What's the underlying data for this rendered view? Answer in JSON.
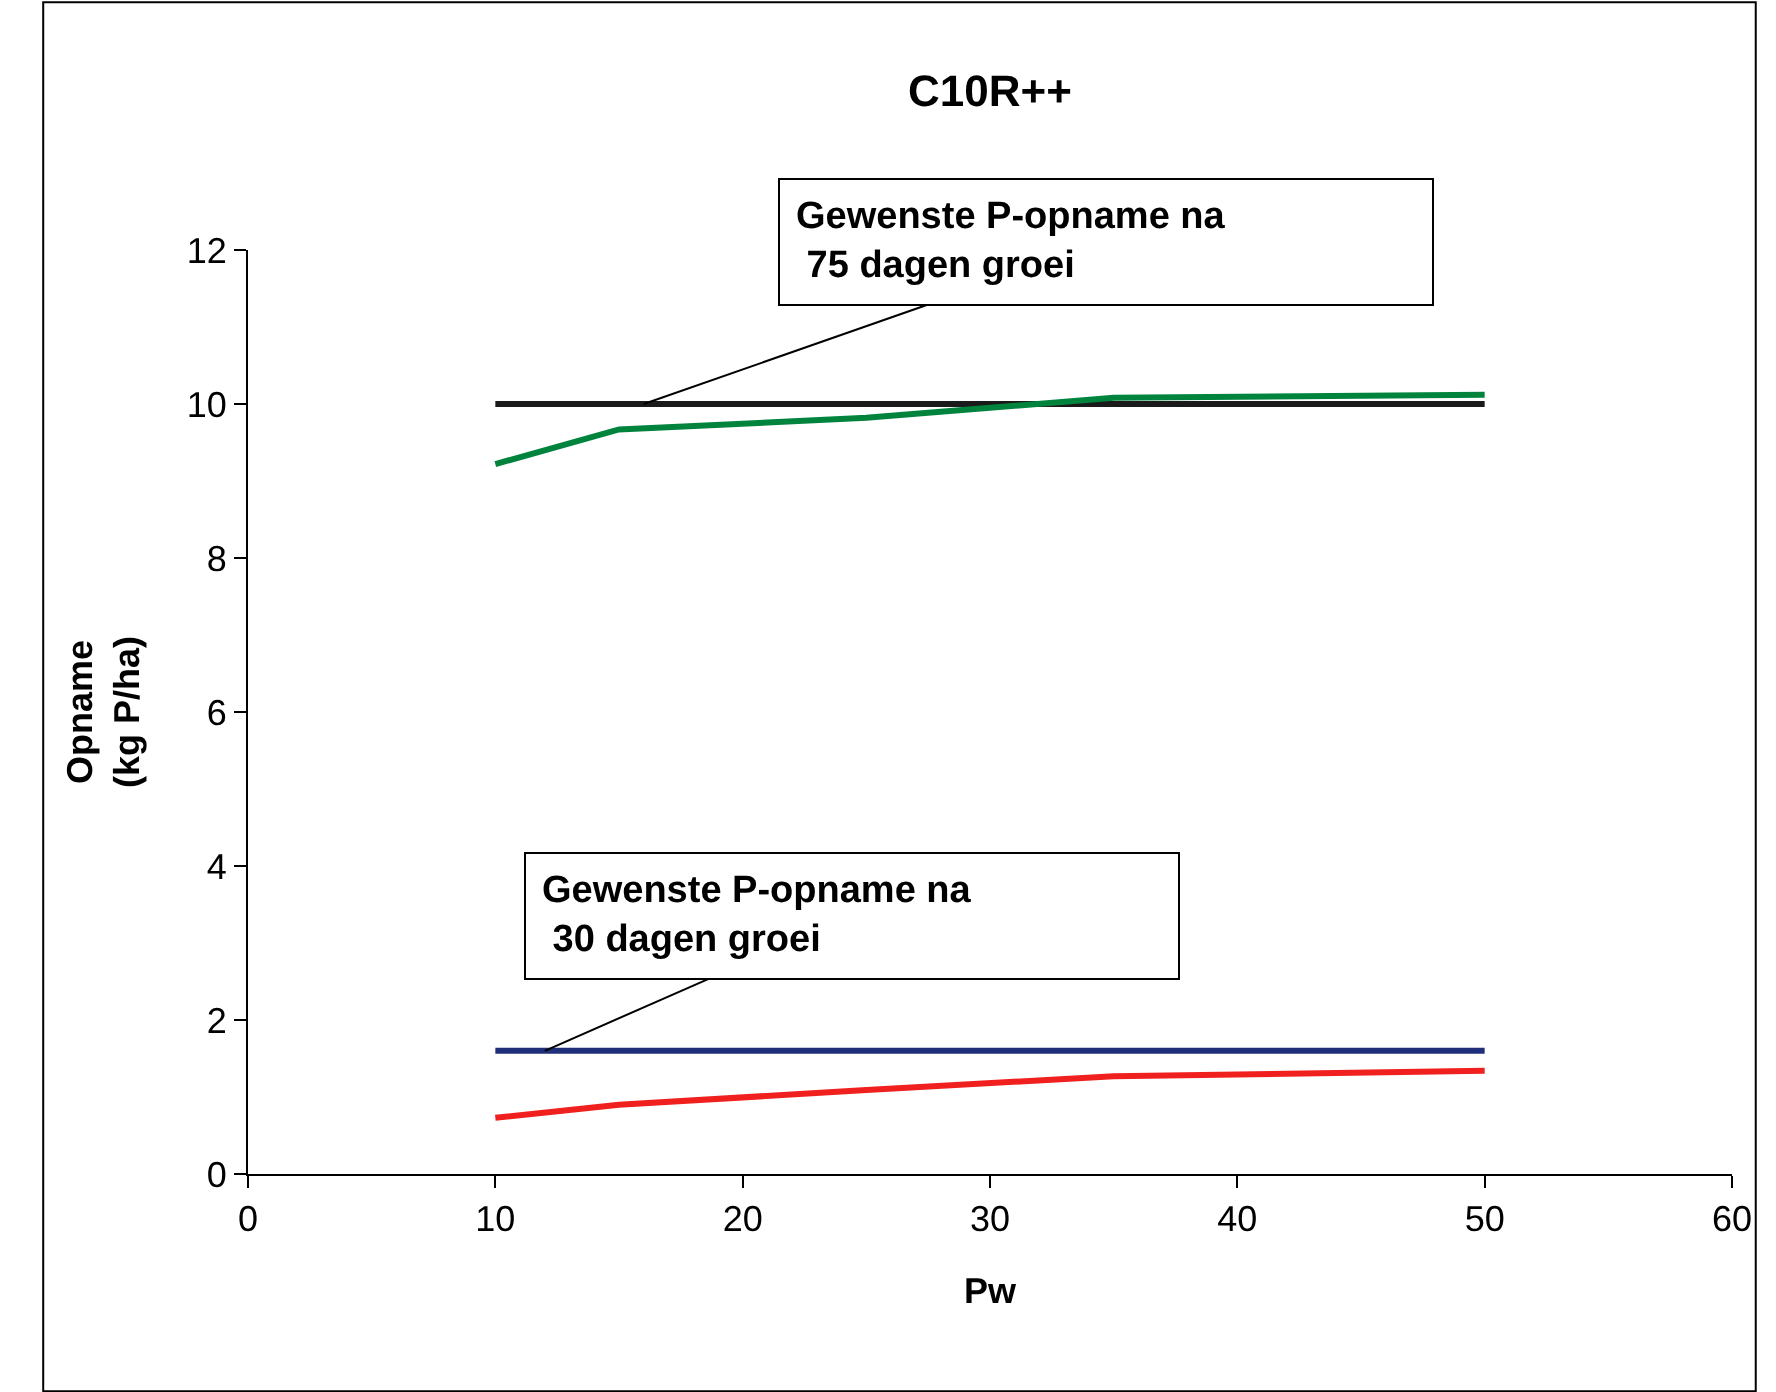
{
  "chart_data": {
    "type": "line",
    "title": "C10R++",
    "xlabel": "Pw",
    "ylabel": "Opname\n(kg P/ha)",
    "x": [
      10,
      15,
      25,
      35,
      50
    ],
    "series": [
      {
        "color": "#1a1a1a",
        "values": [
          10,
          10,
          10,
          10,
          10
        ]
      },
      {
        "color": "#00843d",
        "values": [
          9.22,
          9.67,
          9.82,
          10.08,
          10.12
        ]
      },
      {
        "color": "#1f2f7a",
        "values": [
          1.6,
          1.6,
          1.6,
          1.6,
          1.6
        ]
      },
      {
        "color": "#f0201e",
        "values": [
          0.73,
          0.9,
          1.09,
          1.27,
          1.34
        ]
      }
    ],
    "xlim": [
      0,
      60
    ],
    "xticks": [
      0,
      10,
      20,
      30,
      40,
      50,
      60
    ],
    "ylim": [
      0,
      12
    ],
    "yticks": [
      0,
      2,
      4,
      6,
      8,
      10,
      12
    ],
    "marker": "none",
    "line_style": "solid",
    "annotations": [
      {
        "text": "Gewenste P-opname na\n 75 dagen groei",
        "x": 16,
        "y": 10
      },
      {
        "text": "Gewenste P-opname na\n 30 dagen groei",
        "x": 12,
        "y": 1.6
      }
    ]
  }
}
